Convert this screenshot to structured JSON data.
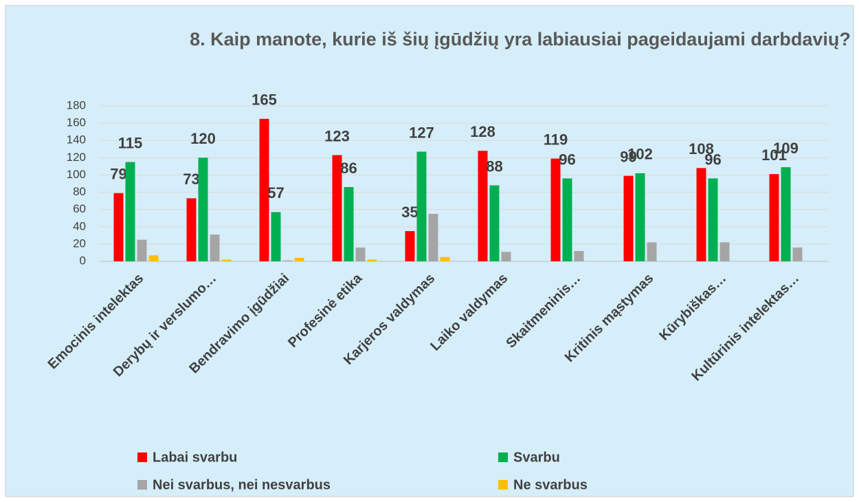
{
  "chart_data": {
    "type": "bar",
    "title": "8. Kaip manote, kurie iš šių įgūdžių yra labiausiai pageidaujami darbdavių?",
    "categories": [
      "Emocinis intelektas",
      "Derybų ir verslumo…",
      "Bendravimo įgūdžiai",
      "Profesinė etika",
      "Karjeros valdymas",
      "Laiko valdymas",
      "Skaitmeninis…",
      "Kritinis mąstymas",
      "Kūrybiškas…",
      "Kultūrinis intelektas…"
    ],
    "series": [
      {
        "name": "Labai svarbu",
        "color": "#ff0000",
        "values": [
          79,
          73,
          165,
          123,
          35,
          128,
          119,
          99,
          108,
          101
        ],
        "show_labels": true
      },
      {
        "name": "Svarbu",
        "color": "#00b050",
        "values": [
          115,
          120,
          57,
          86,
          127,
          88,
          96,
          102,
          96,
          109
        ],
        "show_labels": true
      },
      {
        "name": "Nei svarbus, nei nesvarbus",
        "color": "#a5a5a5",
        "values": [
          25,
          31,
          1,
          16,
          55,
          11,
          12,
          22,
          22,
          16
        ],
        "show_labels": false
      },
      {
        "name": "Ne svarbus",
        "color": "#ffc000",
        "values": [
          7,
          2,
          4,
          2,
          5,
          0,
          0,
          0,
          0,
          0
        ],
        "show_labels": false
      }
    ],
    "ylim": [
      0,
      180
    ],
    "yticks": [
      0,
      20,
      40,
      60,
      80,
      100,
      120,
      140,
      160,
      180
    ],
    "grid": true,
    "legend": "bottom"
  }
}
